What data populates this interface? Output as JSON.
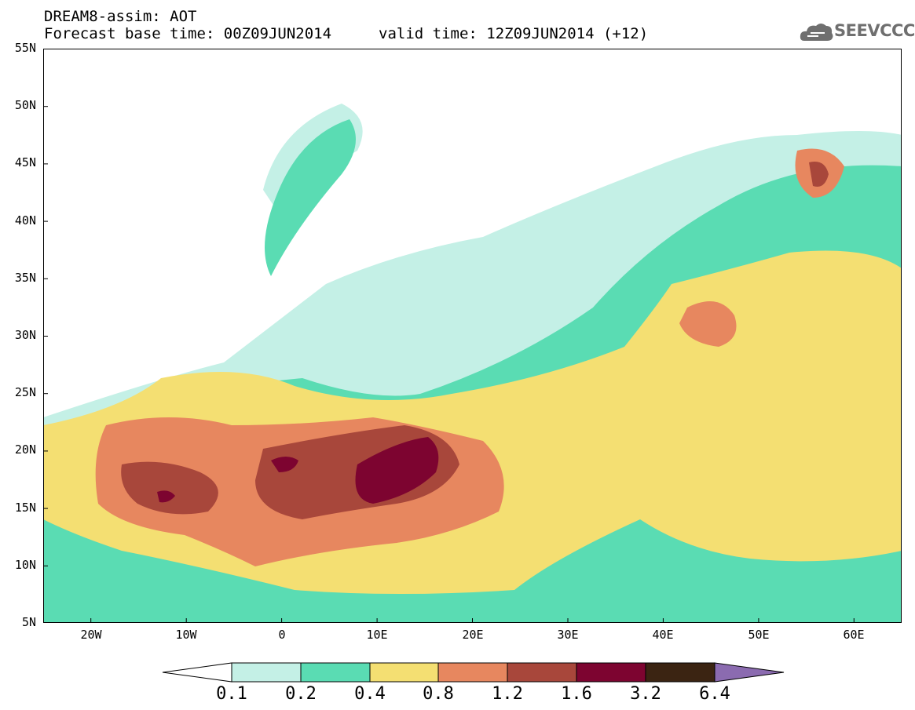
{
  "title": {
    "line1": "DREAM8-assim: AOT",
    "line2": "Forecast base time: 00Z09JUN2014",
    "valid": "valid time: 12Z09JUN2014 (+12)"
  },
  "logo": {
    "text": "SEEVCCC",
    "icon": "cloud-icon"
  },
  "map": {
    "projection": "lat-lon",
    "lon_range": [
      -25,
      65
    ],
    "lat_range": [
      5,
      55
    ],
    "lat_ticks": [
      "55N",
      "50N",
      "45N",
      "40N",
      "35N",
      "30N",
      "25N",
      "20N",
      "15N",
      "10N",
      "5N"
    ],
    "lon_ticks": [
      "20W",
      "10W",
      "0",
      "10E",
      "20E",
      "30E",
      "40E",
      "50E",
      "60E"
    ],
    "field": "AOT"
  },
  "colorbar": {
    "labels": [
      "0.1",
      "0.2",
      "0.4",
      "0.8",
      "1.2",
      "1.6",
      "3.2",
      "6.4"
    ],
    "colors": [
      "#ffffff",
      "#c4f0e6",
      "#5adcb3",
      "#f4df72",
      "#e7875f",
      "#a8473b",
      "#7d0430",
      "#3b2412",
      "#8b6bb0"
    ]
  },
  "colors": {
    "bin1": "#c4f0e6",
    "bin2": "#5adcb3",
    "bin3": "#f4df72",
    "bin4": "#e7875f",
    "bin5": "#a8473b",
    "bin6": "#7d0430",
    "bin7": "#3b2412",
    "bin8": "#8b6bb0"
  }
}
